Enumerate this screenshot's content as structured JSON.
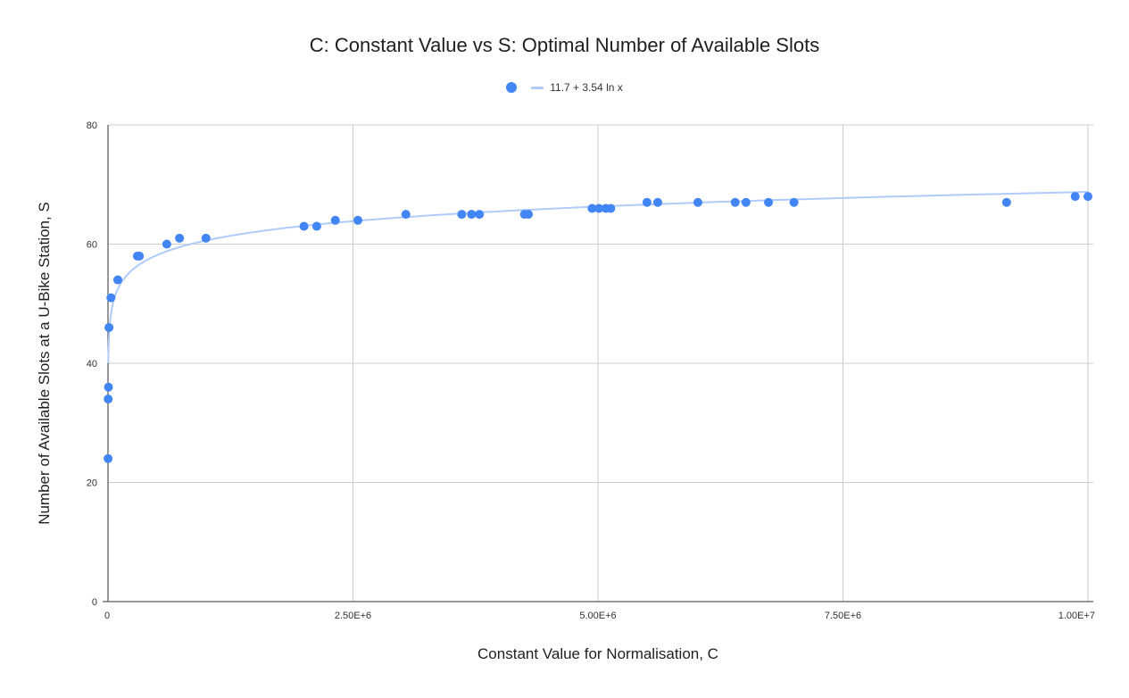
{
  "chart_data": {
    "type": "scatter",
    "title": "C: Constant Value vs S: Optimal Number of Available Slots",
    "xlabel": "Constant Value for Normalisation, C",
    "ylabel": "Number of Available Slots at a U-Bike Station, S",
    "xlim": [
      0,
      10000000
    ],
    "ylim": [
      0,
      80
    ],
    "x_ticks": [
      0,
      2500000,
      5000000,
      7500000,
      10000000
    ],
    "x_tick_labels": [
      "0",
      "2.50E+6",
      "5.00E+6",
      "7.50E+6",
      "1.00E+7"
    ],
    "y_ticks": [
      0,
      20,
      40,
      60,
      80
    ],
    "y_tick_labels": [
      "0",
      "20",
      "40",
      "60",
      "80"
    ],
    "grid": true,
    "legend_position": "top",
    "point_color": "#4285f4",
    "trend_color": "#aecbfa",
    "trendline": {
      "label": "11.7 + 3.54 ln x",
      "type": "logarithmic",
      "intercept": 11.7,
      "coefficient": 3.54
    },
    "points": [
      {
        "x": 1000,
        "y": 24
      },
      {
        "x": 2000,
        "y": 34
      },
      {
        "x": 5000,
        "y": 36
      },
      {
        "x": 10000,
        "y": 46
      },
      {
        "x": 30000,
        "y": 51
      },
      {
        "x": 100000,
        "y": 54
      },
      {
        "x": 300000,
        "y": 58
      },
      {
        "x": 320000,
        "y": 58
      },
      {
        "x": 600000,
        "y": 60
      },
      {
        "x": 730000,
        "y": 61
      },
      {
        "x": 1000000,
        "y": 61
      },
      {
        "x": 2000000,
        "y": 63
      },
      {
        "x": 2130000,
        "y": 63
      },
      {
        "x": 2320000,
        "y": 64
      },
      {
        "x": 2550000,
        "y": 64
      },
      {
        "x": 3040000,
        "y": 65
      },
      {
        "x": 3610000,
        "y": 65
      },
      {
        "x": 3710000,
        "y": 65
      },
      {
        "x": 3790000,
        "y": 65
      },
      {
        "x": 4250000,
        "y": 65
      },
      {
        "x": 4290000,
        "y": 65
      },
      {
        "x": 4940000,
        "y": 66
      },
      {
        "x": 5010000,
        "y": 66
      },
      {
        "x": 5080000,
        "y": 66
      },
      {
        "x": 5130000,
        "y": 66
      },
      {
        "x": 5500000,
        "y": 67
      },
      {
        "x": 5610000,
        "y": 67
      },
      {
        "x": 6020000,
        "y": 67
      },
      {
        "x": 6400000,
        "y": 67
      },
      {
        "x": 6510000,
        "y": 67
      },
      {
        "x": 6740000,
        "y": 67
      },
      {
        "x": 7000000,
        "y": 67
      },
      {
        "x": 9170000,
        "y": 67
      },
      {
        "x": 9870000,
        "y": 68
      },
      {
        "x": 10000000,
        "y": 68
      }
    ]
  }
}
